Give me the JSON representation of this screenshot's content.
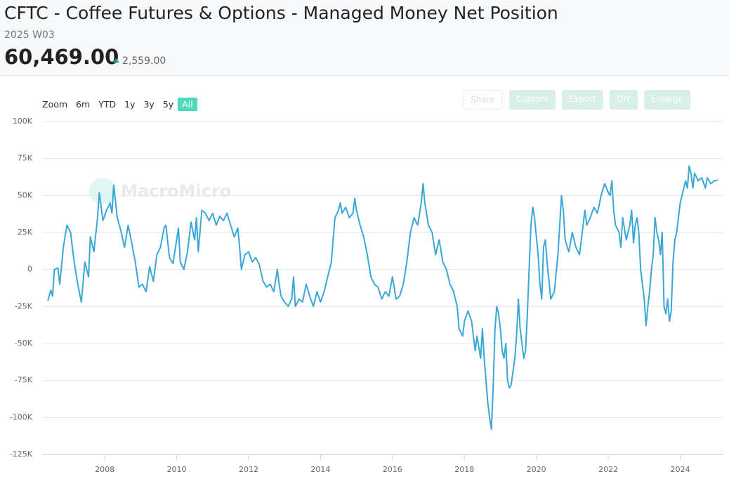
{
  "header": {
    "title": "CFTC - Coffee Futures & Options - Managed Money Net Position",
    "period": "2025 W03",
    "value": "60,469.00",
    "change": "2,559.00"
  },
  "toolbar": {
    "zoom_label": "Zoom",
    "ranges": [
      "6m",
      "YTD",
      "1y",
      "3y",
      "5y",
      "All"
    ],
    "actions": [
      "Share",
      "Custom",
      "Export",
      "DIY",
      "Enlarge"
    ]
  },
  "watermark": "MacroMicro",
  "chart_data": {
    "type": "line",
    "color": "#3ba7d6",
    "grid": true,
    "xlim": [
      2006.26,
      2025.2
    ],
    "xticks": [
      2008,
      2010,
      2012,
      2014,
      2016,
      2018,
      2020,
      2022,
      2024
    ],
    "ylim": [
      -125000,
      100000
    ],
    "yticks": [
      {
        "value": -125000,
        "label": "-125K"
      },
      {
        "value": -100000,
        "label": "-100K"
      },
      {
        "value": -75000,
        "label": "-75K"
      },
      {
        "value": -50000,
        "label": "-50K"
      },
      {
        "value": -25000,
        "label": "-25K"
      },
      0,
      {
        "value": 25000,
        "label": "25K"
      },
      {
        "value": 50000,
        "label": "50K"
      },
      {
        "value": 75000,
        "label": "75K"
      },
      {
        "value": 100000,
        "label": "100K"
      }
    ],
    "x": [
      2006.42,
      2006.5,
      2006.55,
      2006.6,
      2006.7,
      2006.75,
      2006.85,
      2006.95,
      2007.05,
      2007.15,
      2007.25,
      2007.35,
      2007.45,
      2007.55,
      2007.6,
      2007.7,
      2007.8,
      2007.85,
      2007.95,
      2008.05,
      2008.15,
      2008.2,
      2008.25,
      2008.35,
      2008.45,
      2008.55,
      2008.65,
      2008.75,
      2008.85,
      2008.95,
      2009.05,
      2009.15,
      2009.25,
      2009.35,
      2009.45,
      2009.55,
      2009.65,
      2009.7,
      2009.8,
      2009.9,
      2010.0,
      2010.05,
      2010.1,
      2010.2,
      2010.3,
      2010.4,
      2010.5,
      2010.55,
      2010.6,
      2010.7,
      2010.8,
      2010.9,
      2011.0,
      2011.1,
      2011.2,
      2011.3,
      2011.4,
      2011.5,
      2011.6,
      2011.7,
      2011.75,
      2011.8,
      2011.9,
      2012.0,
      2012.1,
      2012.2,
      2012.3,
      2012.4,
      2012.5,
      2012.6,
      2012.7,
      2012.8,
      2012.85,
      2012.9,
      2013.0,
      2013.1,
      2013.2,
      2013.25,
      2013.3,
      2013.4,
      2013.5,
      2013.6,
      2013.7,
      2013.8,
      2013.9,
      2014.0,
      2014.1,
      2014.2,
      2014.3,
      2014.4,
      2014.5,
      2014.55,
      2014.6,
      2014.7,
      2014.8,
      2014.9,
      2014.95,
      2015.0,
      2015.1,
      2015.2,
      2015.3,
      2015.4,
      2015.5,
      2015.6,
      2015.7,
      2015.8,
      2015.9,
      2016.0,
      2016.1,
      2016.2,
      2016.3,
      2016.4,
      2016.5,
      2016.6,
      2016.7,
      2016.8,
      2016.85,
      2016.9,
      2017.0,
      2017.1,
      2017.2,
      2017.3,
      2017.4,
      2017.5,
      2017.6,
      2017.7,
      2017.8,
      2017.85,
      2017.95,
      2018.0,
      2018.1,
      2018.2,
      2018.3,
      2018.35,
      2018.45,
      2018.5,
      2018.55,
      2018.6,
      2018.65,
      2018.7,
      2018.75,
      2018.8,
      2018.85,
      2018.9,
      2018.95,
      2019.0,
      2019.05,
      2019.1,
      2019.15,
      2019.2,
      2019.25,
      2019.3,
      2019.4,
      2019.45,
      2019.5,
      2019.55,
      2019.6,
      2019.65,
      2019.7,
      2019.75,
      2019.8,
      2019.85,
      2019.9,
      2019.95,
      2020.05,
      2020.1,
      2020.15,
      2020.2,
      2020.25,
      2020.3,
      2020.4,
      2020.5,
      2020.6,
      2020.65,
      2020.7,
      2020.75,
      2020.8,
      2020.9,
      2021.0,
      2021.1,
      2021.2,
      2021.3,
      2021.35,
      2021.4,
      2021.5,
      2021.6,
      2021.7,
      2021.8,
      2021.9,
      2022.0,
      2022.05,
      2022.1,
      2022.15,
      2022.2,
      2022.3,
      2022.35,
      2022.4,
      2022.5,
      2022.6,
      2022.65,
      2022.7,
      2022.75,
      2022.8,
      2022.85,
      2022.9,
      2022.95,
      2023.0,
      2023.05,
      2023.1,
      2023.15,
      2023.2,
      2023.25,
      2023.3,
      2023.35,
      2023.4,
      2023.45,
      2023.5,
      2023.55,
      2023.6,
      2023.65,
      2023.7,
      2023.75,
      2023.8,
      2023.85,
      2023.9,
      2023.95,
      2024.0,
      2024.05,
      2024.1,
      2024.15,
      2024.2,
      2024.25,
      2024.3,
      2024.35,
      2024.4,
      2024.5,
      2024.6,
      2024.7,
      2024.75,
      2024.85,
      2024.95,
      2025.05
    ],
    "values": [
      -21000,
      -14000,
      -18000,
      0,
      1000,
      -10000,
      15000,
      30000,
      25000,
      5000,
      -10000,
      -22000,
      5000,
      -5000,
      22000,
      12000,
      35000,
      52000,
      33000,
      40000,
      45000,
      38000,
      57000,
      35000,
      26000,
      15000,
      30000,
      18000,
      5000,
      -12000,
      -10000,
      -15000,
      2000,
      -8000,
      10000,
      15000,
      28000,
      30000,
      8000,
      4000,
      20000,
      28000,
      5000,
      0,
      12000,
      32000,
      20000,
      35000,
      12000,
      40000,
      38000,
      33000,
      38000,
      30000,
      36000,
      33000,
      38000,
      30000,
      22000,
      28000,
      15000,
      0,
      10000,
      12000,
      5000,
      8000,
      3000,
      -8000,
      -12000,
      -10000,
      -15000,
      0,
      -10000,
      -18000,
      -22000,
      -25000,
      -20000,
      -5000,
      -25000,
      -20000,
      -22000,
      -10000,
      -18000,
      -25000,
      -15000,
      -22000,
      -15000,
      -5000,
      5000,
      35000,
      40000,
      45000,
      38000,
      42000,
      35000,
      38000,
      48000,
      40000,
      30000,
      22000,
      10000,
      -5000,
      -10000,
      -12000,
      -20000,
      -15000,
      -18000,
      -5000,
      -20000,
      -18000,
      -10000,
      5000,
      25000,
      35000,
      30000,
      45000,
      58000,
      45000,
      30000,
      25000,
      10000,
      20000,
      5000,
      0,
      -10000,
      -15000,
      -25000,
      -40000,
      -45000,
      -35000,
      -28000,
      -35000,
      -55000,
      -45000,
      -60000,
      -40000,
      -60000,
      -75000,
      -90000,
      -100000,
      -108000,
      -80000,
      -40000,
      -25000,
      -30000,
      -40000,
      -55000,
      -60000,
      -50000,
      -75000,
      -80000,
      -78000,
      -60000,
      -45000,
      -20000,
      -40000,
      -50000,
      -60000,
      -55000,
      -30000,
      0,
      30000,
      42000,
      35000,
      10000,
      -10000,
      -20000,
      15000,
      20000,
      5000,
      -20000,
      -15000,
      10000,
      30000,
      50000,
      40000,
      20000,
      12000,
      25000,
      15000,
      10000,
      30000,
      40000,
      30000,
      35000,
      42000,
      38000,
      50000,
      58000,
      52000,
      50000,
      60000,
      40000,
      30000,
      25000,
      15000,
      35000,
      20000,
      30000,
      40000,
      18000,
      30000,
      35000,
      25000,
      0,
      -10000,
      -20000,
      -38000,
      -25000,
      -15000,
      0,
      10000,
      35000,
      25000,
      20000,
      10000,
      25000,
      -25000,
      -30000,
      -20000,
      -35000,
      -28000,
      5000,
      20000,
      25000,
      35000,
      45000,
      50000,
      55000,
      60000,
      55000,
      70000,
      65000,
      55000,
      65000,
      60000,
      62000,
      55000,
      62000,
      58000,
      60000,
      60469
    ]
  }
}
